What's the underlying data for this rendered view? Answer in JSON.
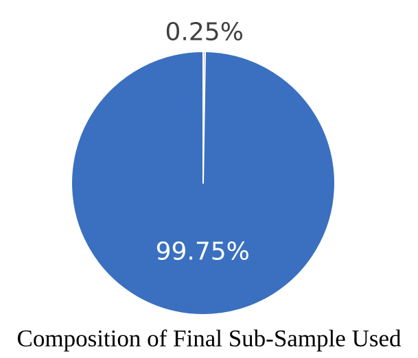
{
  "chart_data": {
    "type": "pie",
    "title": "",
    "slices": [
      {
        "label": "0.25%",
        "value": 0.25,
        "color": "#c9a29c",
        "label_color": "#404040",
        "label_position": "outside"
      },
      {
        "label": "99.75%",
        "value": 99.75,
        "color": "#3a70bf",
        "label_color": "#ffffff",
        "label_position": "inside"
      }
    ],
    "start": "top",
    "direction": "clockwise",
    "legend": "none"
  },
  "caption": "Composition of Final Sub-Sample Used"
}
